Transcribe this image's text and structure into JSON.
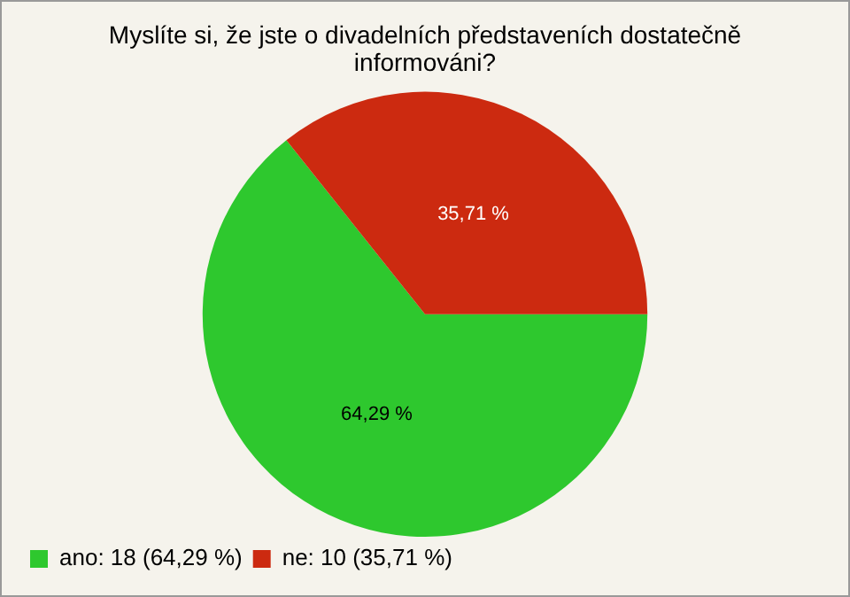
{
  "chart_data": {
    "type": "pie",
    "title": "Myslíte si, že jste o divadelních představeních dostatečně informováni?",
    "categories": [
      "ano: 18 (64,29 %)",
      "ne: 10 (35,71 %)"
    ],
    "values": [
      64.29,
      35.71
    ],
    "colors": [
      "#2ec82e",
      "#cc2a10"
    ],
    "value_labels": [
      "64,29 %",
      "35,71 %"
    ],
    "legend": "bottom left"
  }
}
